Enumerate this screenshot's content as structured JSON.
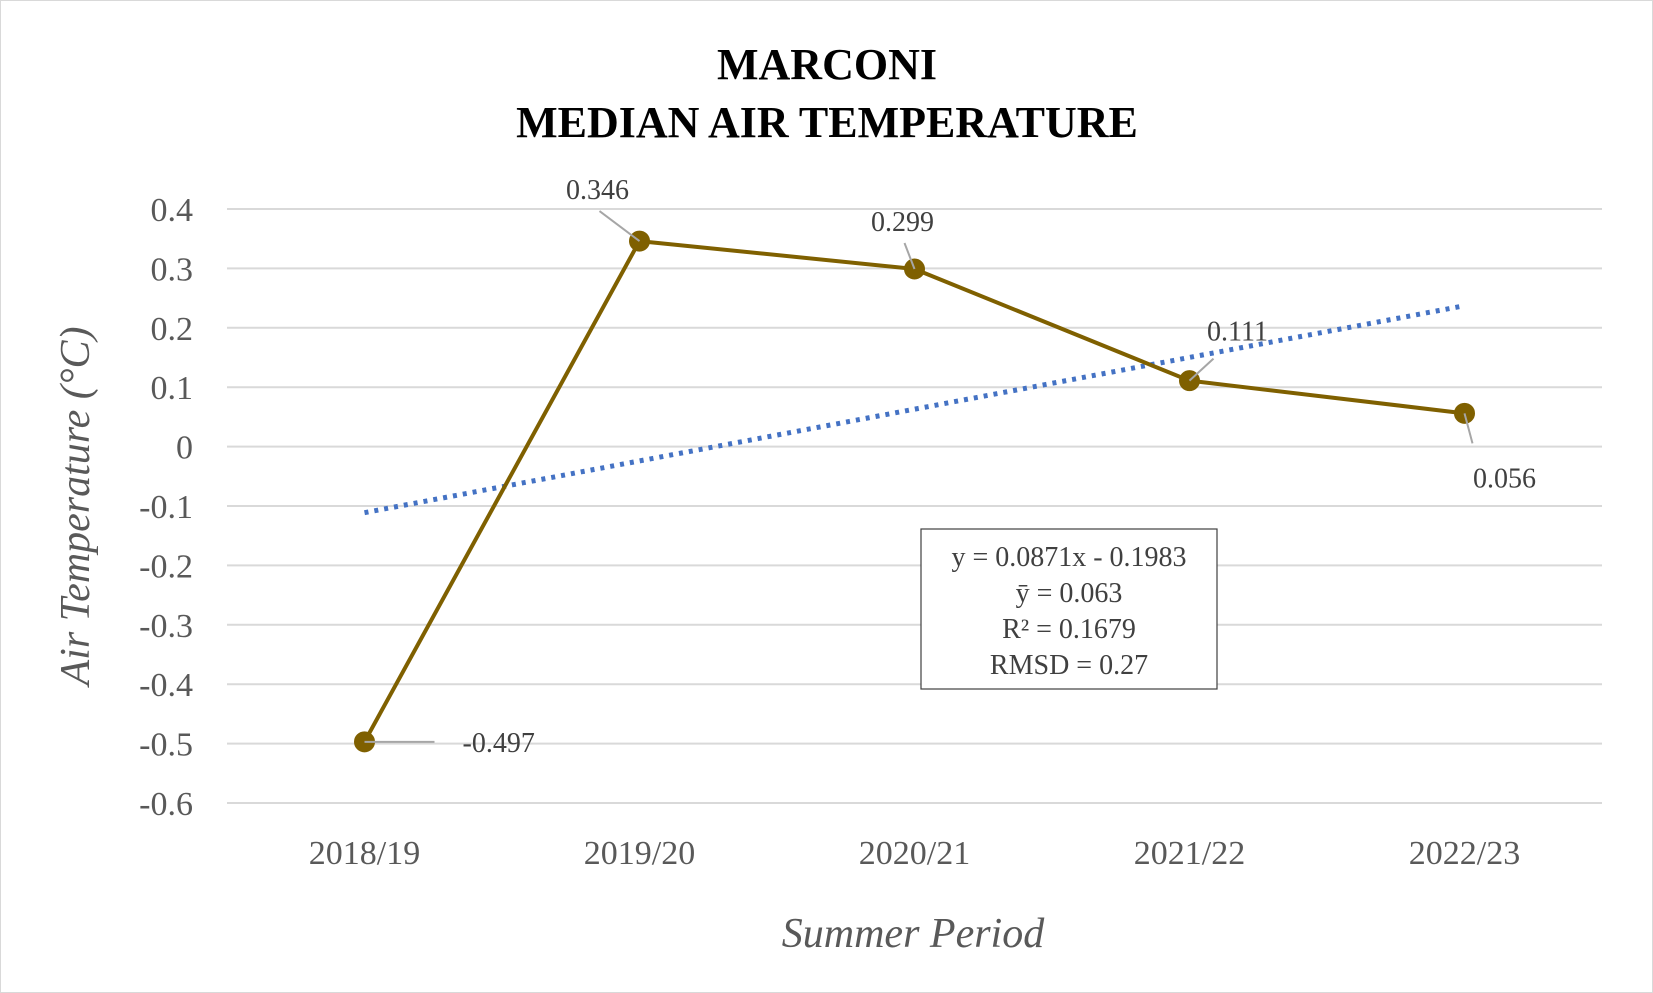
{
  "chart_data": {
    "type": "line",
    "title": [
      "MARCONI",
      "MEDIAN AIR TEMPERATURE"
    ],
    "xlabel": "Summer Period",
    "ylabel": "Air Temperature (°C)",
    "categories": [
      "2018/19",
      "2019/20",
      "2020/21",
      "2021/22",
      "2022/23"
    ],
    "series": [
      {
        "values": [
          -0.497,
          0.346,
          0.299,
          0.111,
          0.056
        ],
        "color": "#7f6000"
      }
    ],
    "data_labels": [
      "-0.497",
      "0.346",
      "0.299",
      "0.111",
      "0.056"
    ],
    "trendline": {
      "type": "linear",
      "slope": 0.0871,
      "intercept": -0.1983,
      "color": "#4472c4",
      "style": "dotted"
    },
    "ylim": [
      -0.6,
      0.4
    ],
    "yticks": [
      0.4,
      0.3,
      0.2,
      0.1,
      0,
      -0.1,
      -0.2,
      -0.3,
      -0.4,
      -0.5,
      -0.6
    ],
    "ytick_labels": [
      "0.4",
      "0.3",
      "0.2",
      "0.1",
      "0",
      "-0.1",
      "-0.2",
      "-0.3",
      "-0.4",
      "-0.5",
      "-0.6"
    ],
    "grid": true,
    "legend": "none",
    "stats_box": [
      "y = 0.0871x - 0.1983",
      "ȳ = 0.063",
      "R² = 0.1679",
      "RMSD = 0.27"
    ]
  }
}
